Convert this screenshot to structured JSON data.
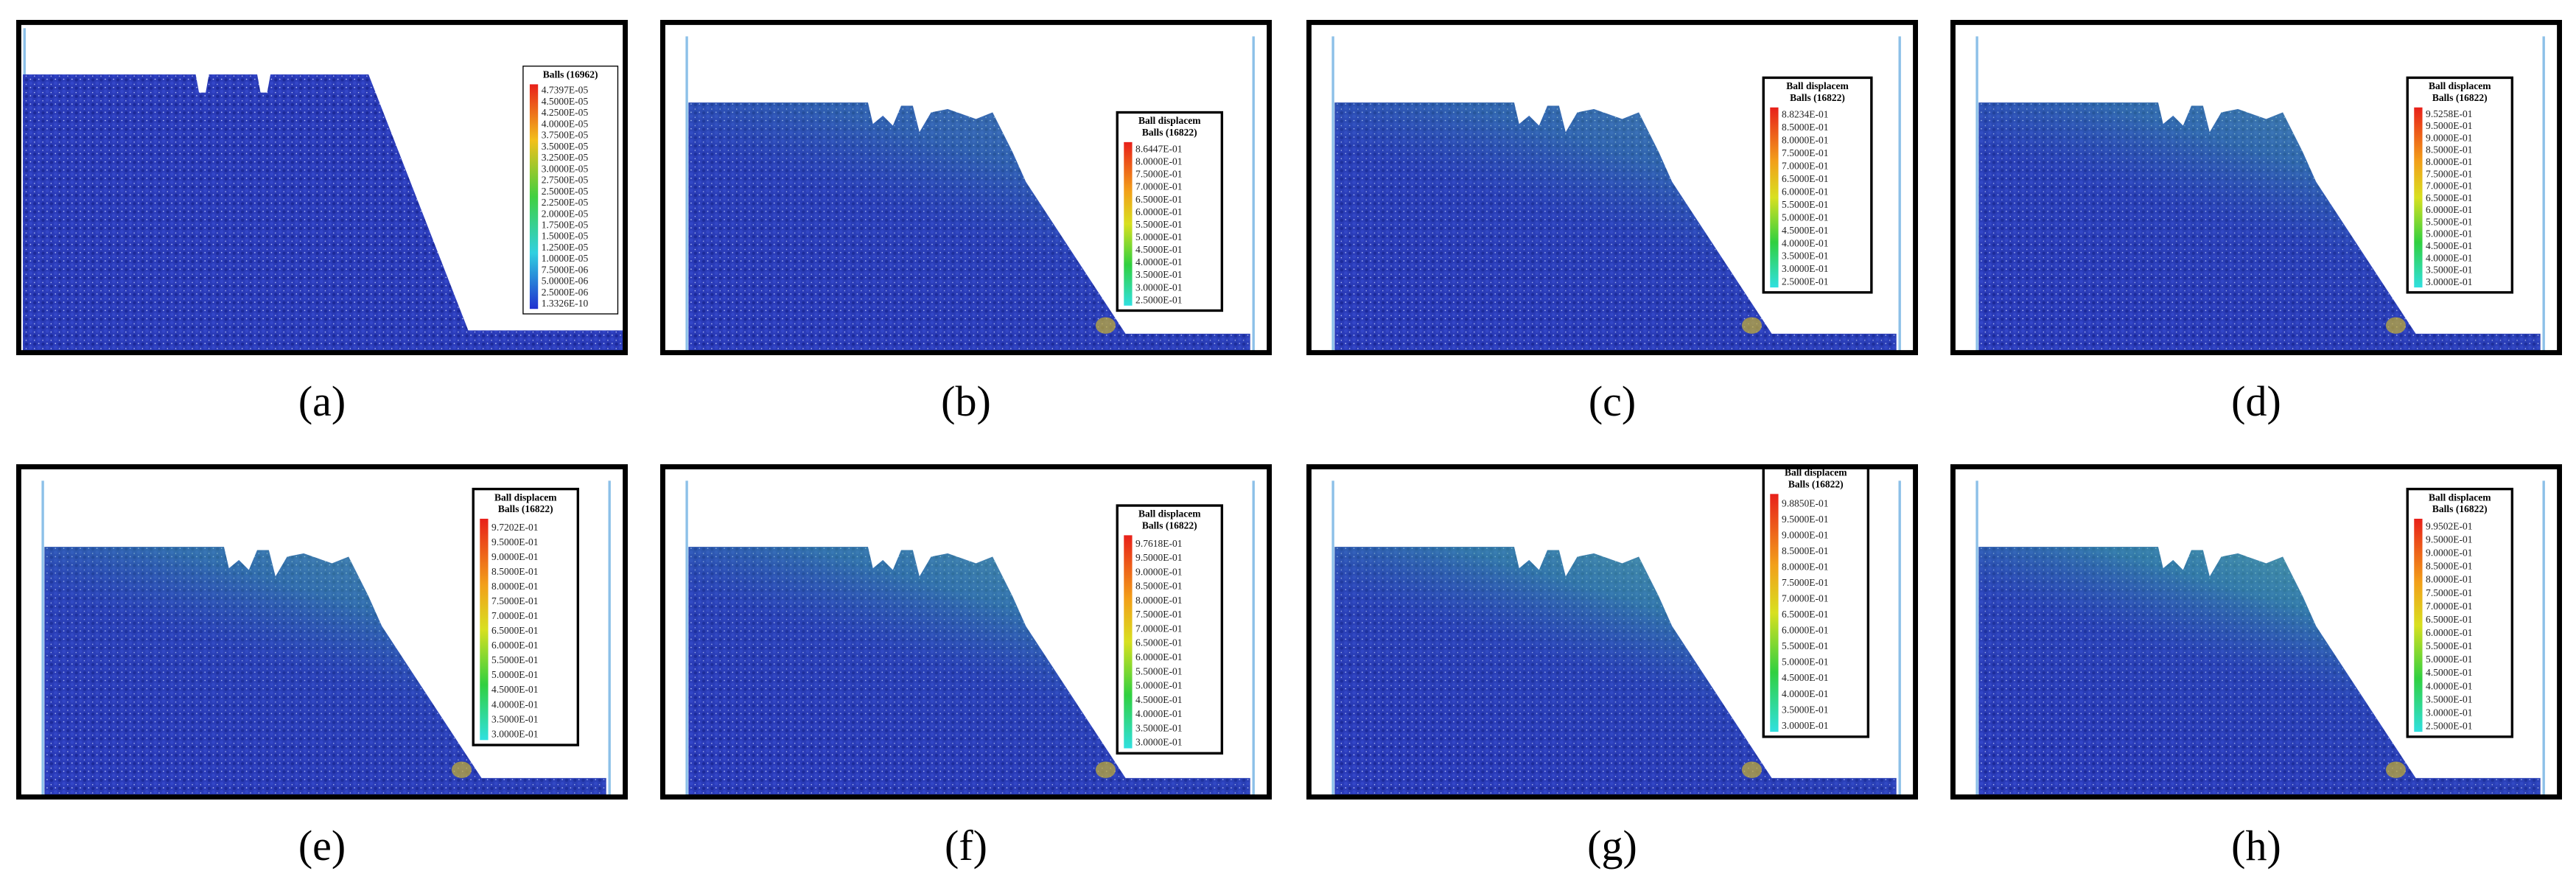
{
  "panels": [
    {
      "label": "(a)",
      "legend": {
        "title": [
          "Balls (16962)"
        ],
        "values": [
          "4.7397E-05",
          "4.5000E-05",
          "4.2500E-05",
          "4.0000E-05",
          "3.7500E-05",
          "3.5000E-05",
          "3.2500E-05",
          "3.0000E-05",
          "2.7500E-05",
          "2.5000E-05",
          "2.2500E-05",
          "2.0000E-05",
          "1.7500E-05",
          "1.5000E-05",
          "1.2500E-05",
          "1.0000E-05",
          "7.5000E-06",
          "5.0000E-06",
          "2.5000E-06",
          "1.3326E-10"
        ]
      }
    },
    {
      "label": "(b)",
      "legend": {
        "title": [
          "Ball displacem",
          "Balls (16822)"
        ],
        "values": [
          "8.6447E-01",
          "8.0000E-01",
          "7.5000E-01",
          "7.0000E-01",
          "6.5000E-01",
          "6.0000E-01",
          "5.5000E-01",
          "5.0000E-01",
          "4.5000E-01",
          "4.0000E-01",
          "3.5000E-01",
          "3.0000E-01",
          "2.5000E-01"
        ]
      }
    },
    {
      "label": "(c)",
      "legend": {
        "title": [
          "Ball displacem",
          "Balls (16822)"
        ],
        "values": [
          "8.8234E-01",
          "8.5000E-01",
          "8.0000E-01",
          "7.5000E-01",
          "7.0000E-01",
          "6.5000E-01",
          "6.0000E-01",
          "5.5000E-01",
          "5.0000E-01",
          "4.5000E-01",
          "4.0000E-01",
          "3.5000E-01",
          "3.0000E-01",
          "2.5000E-01"
        ]
      }
    },
    {
      "label": "(d)",
      "legend": {
        "title": [
          "Ball displacem",
          "Balls (16822)"
        ],
        "values": [
          "9.5258E-01",
          "9.5000E-01",
          "9.0000E-01",
          "8.5000E-01",
          "8.0000E-01",
          "7.5000E-01",
          "7.0000E-01",
          "6.5000E-01",
          "6.0000E-01",
          "5.5000E-01",
          "5.0000E-01",
          "4.5000E-01",
          "4.0000E-01",
          "3.5000E-01",
          "3.0000E-01"
        ]
      }
    },
    {
      "label": "(e)",
      "legend": {
        "title": [
          "Ball displacem",
          "Balls (16822)"
        ],
        "values": [
          "9.7202E-01",
          "9.5000E-01",
          "9.0000E-01",
          "8.5000E-01",
          "8.0000E-01",
          "7.5000E-01",
          "7.0000E-01",
          "6.5000E-01",
          "6.0000E-01",
          "5.5000E-01",
          "5.0000E-01",
          "4.5000E-01",
          "4.0000E-01",
          "3.5000E-01",
          "3.0000E-01"
        ]
      }
    },
    {
      "label": "(f)",
      "legend": {
        "title": [
          "Ball displacem",
          "Balls (16822)"
        ],
        "values": [
          "9.7618E-01",
          "9.5000E-01",
          "9.0000E-01",
          "8.5000E-01",
          "8.0000E-01",
          "7.5000E-01",
          "7.0000E-01",
          "6.5000E-01",
          "6.0000E-01",
          "5.5000E-01",
          "5.0000E-01",
          "4.5000E-01",
          "4.0000E-01",
          "3.5000E-01",
          "3.0000E-01"
        ]
      }
    },
    {
      "label": "(g)",
      "legend": {
        "title": [
          "Ball displacem",
          "Balls (16822)"
        ],
        "values": [
          "9.8850E-01",
          "9.5000E-01",
          "9.0000E-01",
          "8.5000E-01",
          "8.0000E-01",
          "7.5000E-01",
          "7.0000E-01",
          "6.5000E-01",
          "6.0000E-01",
          "5.5000E-01",
          "5.0000E-01",
          "4.5000E-01",
          "4.0000E-01",
          "3.5000E-01",
          "3.0000E-01"
        ]
      }
    },
    {
      "label": "(h)",
      "legend": {
        "title": [
          "Ball displacem",
          "Balls (16822)"
        ],
        "values": [
          "9.9502E-01",
          "9.5000E-01",
          "9.0000E-01",
          "8.5000E-01",
          "8.0000E-01",
          "7.5000E-01",
          "7.0000E-01",
          "6.5000E-01",
          "6.0000E-01",
          "5.5000E-01",
          "5.0000E-01",
          "4.5000E-01",
          "4.0000E-01",
          "3.5000E-01",
          "3.0000E-01",
          "2.5000E-01"
        ]
      }
    }
  ]
}
